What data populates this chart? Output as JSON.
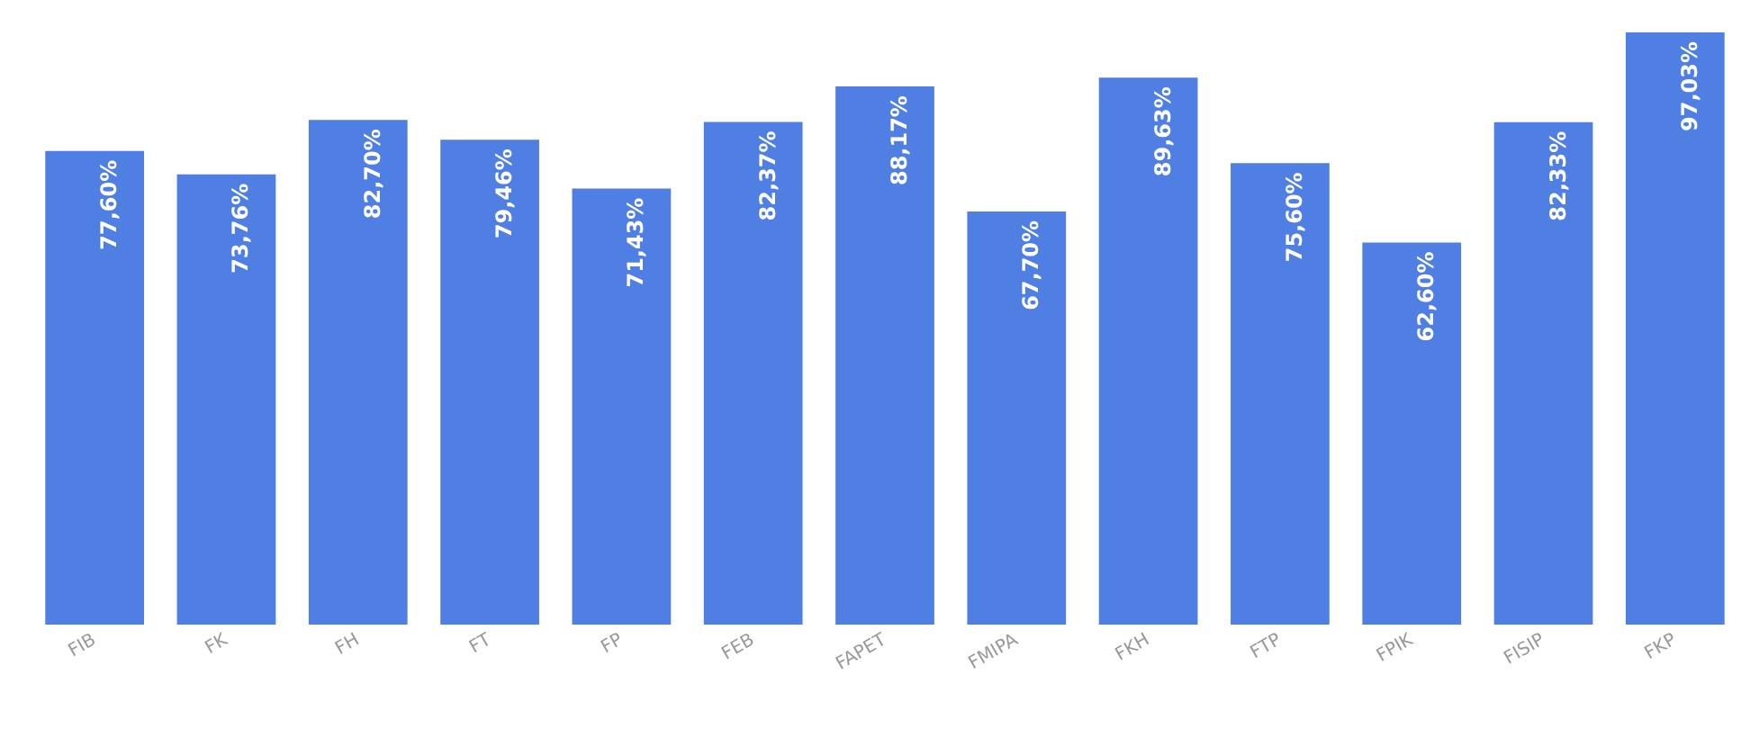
{
  "chart_data": {
    "type": "bar",
    "categories": [
      "FIB",
      "FK",
      "FH",
      "FT",
      "FP",
      "FEB",
      "FAPET",
      "FMIPA",
      "FKH",
      "FTP",
      "FPIK",
      "FISIP",
      "FKP"
    ],
    "values": [
      77.6,
      73.76,
      82.7,
      79.46,
      71.43,
      82.37,
      88.17,
      67.7,
      89.63,
      75.6,
      62.6,
      82.33,
      97.03
    ],
    "value_labels": [
      "77,60%",
      "73,76%",
      "82,70%",
      "79,46%",
      "71,43%",
      "82,37%",
      "88,17%",
      "67,70%",
      "89,63%",
      "75,60%",
      "62,60%",
      "82,33%",
      "97,03%"
    ],
    "color": "#4f7fe3",
    "tick_labels": "x"
  }
}
